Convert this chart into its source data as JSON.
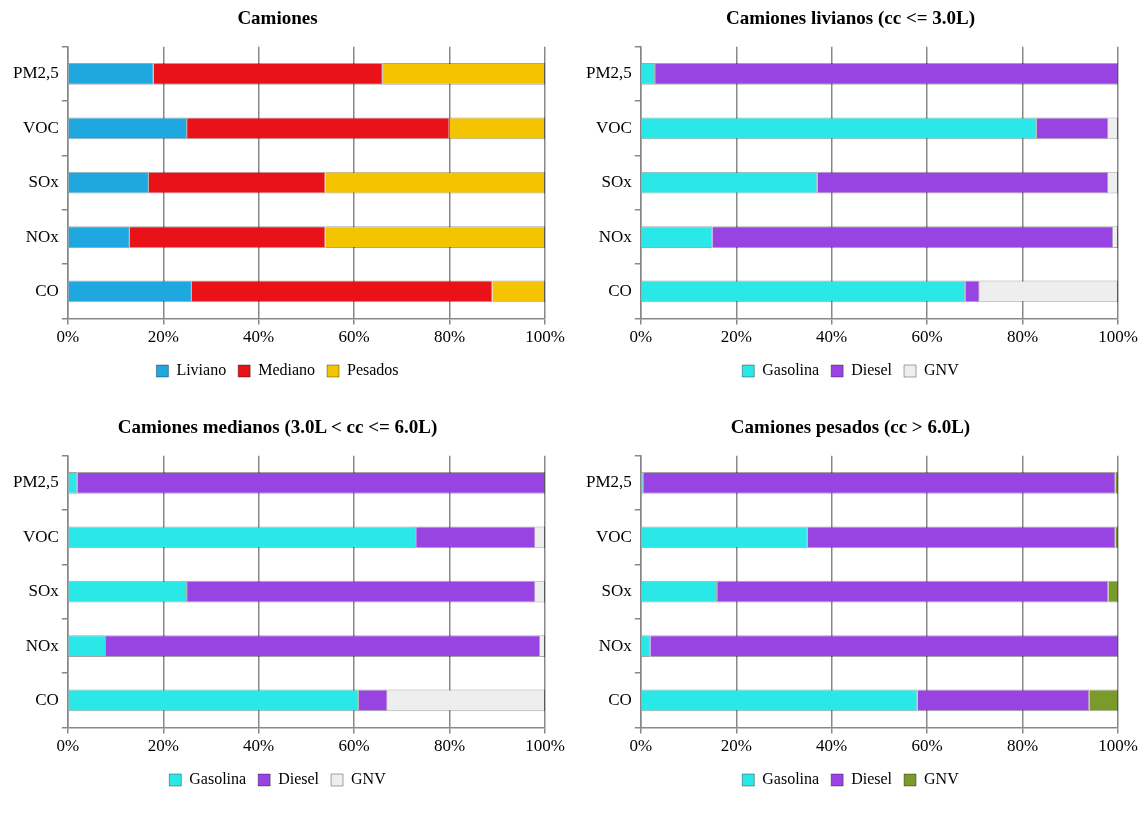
{
  "chart_data": [
    {
      "type": "bar",
      "orientation": "horizontal",
      "stacked": true,
      "title": "Camiones",
      "categories": [
        "PM2,5",
        "VOC",
        "SOx",
        "NOx",
        "CO"
      ],
      "series": [
        {
          "name": "Liviano",
          "color": "#1fa8e0",
          "values": [
            18,
            25,
            17,
            13,
            26
          ]
        },
        {
          "name": "Mediano",
          "color": "#e81218",
          "values": [
            48,
            55,
            37,
            41,
            63
          ]
        },
        {
          "name": "Pesados",
          "color": "#f5c400",
          "values": [
            34,
            20,
            46,
            46,
            11
          ]
        }
      ],
      "xlim": [
        0,
        100
      ],
      "xticks": [
        {
          "value": 0,
          "label": "0%"
        },
        {
          "value": 20,
          "label": "20%"
        },
        {
          "value": 40,
          "label": "40%"
        },
        {
          "value": 60,
          "label": "60%"
        },
        {
          "value": 80,
          "label": "80%"
        },
        {
          "value": 100,
          "label": "100%"
        }
      ],
      "grid": "x",
      "legend": "bottom"
    },
    {
      "type": "bar",
      "orientation": "horizontal",
      "stacked": true,
      "title": "Camiones livianos (cc <= 3.0L)",
      "categories": [
        "PM2,5",
        "VOC",
        "SOx",
        "NOx",
        "CO"
      ],
      "series": [
        {
          "name": "Gasolina",
          "color": "#2ae8e8",
          "values": [
            3,
            83,
            37,
            15,
            68
          ]
        },
        {
          "name": "Diesel",
          "color": "#9844e2",
          "values": [
            97,
            15,
            61,
            84,
            3
          ]
        },
        {
          "name": "GNV",
          "color": "#eeeeee",
          "values": [
            0,
            2,
            2,
            1,
            29
          ]
        }
      ],
      "xlim": [
        0,
        100
      ],
      "xticks": [
        {
          "value": 0,
          "label": "0%"
        },
        {
          "value": 20,
          "label": "20%"
        },
        {
          "value": 40,
          "label": "40%"
        },
        {
          "value": 60,
          "label": "60%"
        },
        {
          "value": 80,
          "label": "80%"
        },
        {
          "value": 100,
          "label": "100%"
        }
      ],
      "grid": "x",
      "legend": "bottom"
    },
    {
      "type": "bar",
      "orientation": "horizontal",
      "stacked": true,
      "title": "Camiones medianos (3.0L < cc <= 6.0L)",
      "categories": [
        "PM2,5",
        "VOC",
        "SOx",
        "NOx",
        "CO"
      ],
      "series": [
        {
          "name": "Gasolina",
          "color": "#2ae8e8",
          "values": [
            2,
            73,
            25,
            8,
            61
          ]
        },
        {
          "name": "Diesel",
          "color": "#9844e2",
          "values": [
            98,
            25,
            73,
            91,
            6
          ]
        },
        {
          "name": "GNV",
          "color": "#eeeeee",
          "values": [
            0,
            2,
            2,
            1,
            33
          ]
        }
      ],
      "xlim": [
        0,
        100
      ],
      "xticks": [
        {
          "value": 0,
          "label": "0%"
        },
        {
          "value": 20,
          "label": "20%"
        },
        {
          "value": 40,
          "label": "40%"
        },
        {
          "value": 60,
          "label": "60%"
        },
        {
          "value": 80,
          "label": "80%"
        },
        {
          "value": 100,
          "label": "100%"
        }
      ],
      "grid": "x",
      "legend": "bottom"
    },
    {
      "type": "bar",
      "orientation": "horizontal",
      "stacked": true,
      "title": "Camiones pesados (cc > 6.0L)",
      "categories": [
        "PM2,5",
        "VOC",
        "SOx",
        "NOx",
        "CO"
      ],
      "series": [
        {
          "name": "Gasolina",
          "color": "#2ae8e8",
          "values": [
            0.5,
            35,
            16,
            2,
            58
          ]
        },
        {
          "name": "Diesel",
          "color": "#9844e2",
          "values": [
            99,
            64.5,
            82,
            98,
            36
          ]
        },
        {
          "name": "GNV",
          "color": "#7a9a2a",
          "values": [
            0.5,
            0.5,
            2,
            0,
            6
          ]
        }
      ],
      "xlim": [
        0,
        100
      ],
      "xticks": [
        {
          "value": 0,
          "label": "0%"
        },
        {
          "value": 20,
          "label": "20%"
        },
        {
          "value": 40,
          "label": "40%"
        },
        {
          "value": 60,
          "label": "60%"
        },
        {
          "value": 80,
          "label": "80%"
        },
        {
          "value": 100,
          "label": "100%"
        }
      ],
      "grid": "x",
      "legend": "bottom"
    }
  ]
}
